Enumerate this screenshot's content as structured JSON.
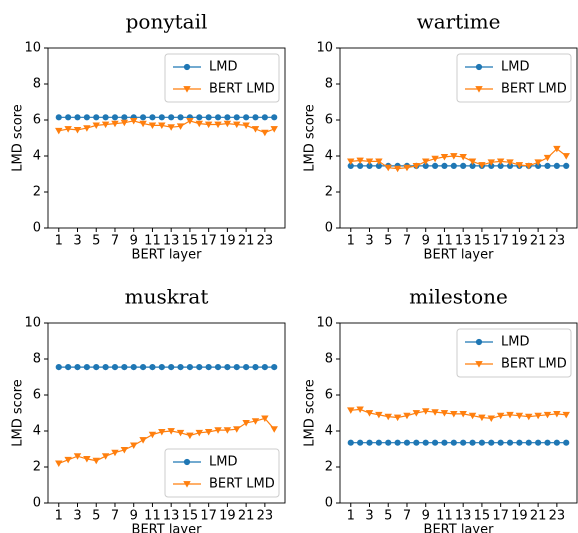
{
  "chart_data": [
    {
      "type": "line",
      "title": "ponytail",
      "xlabel": "BERT layer",
      "ylabel": "LMD score",
      "x": [
        1,
        2,
        3,
        4,
        5,
        6,
        7,
        8,
        9,
        10,
        11,
        12,
        13,
        14,
        15,
        16,
        17,
        18,
        19,
        20,
        21,
        22,
        23,
        24
      ],
      "xlim": [
        -0.15,
        25.15
      ],
      "xticks": [
        1,
        3,
        5,
        7,
        9,
        11,
        13,
        15,
        17,
        19,
        21,
        23
      ],
      "ylim": [
        0,
        10
      ],
      "yticks": [
        0,
        2,
        4,
        6,
        8,
        10
      ],
      "legend": "upper right",
      "series": [
        {
          "name": "LMD",
          "color": "#1f77b4",
          "marker": "circle",
          "values": [
            6.15,
            6.15,
            6.15,
            6.15,
            6.15,
            6.15,
            6.15,
            6.15,
            6.15,
            6.15,
            6.15,
            6.15,
            6.15,
            6.15,
            6.15,
            6.15,
            6.15,
            6.15,
            6.15,
            6.15,
            6.15,
            6.15,
            6.15,
            6.15
          ]
        },
        {
          "name": "BERT LMD",
          "color": "#ff7f0e",
          "marker": "triangle",
          "values": [
            5.4,
            5.5,
            5.45,
            5.55,
            5.7,
            5.75,
            5.8,
            5.85,
            5.95,
            5.8,
            5.7,
            5.7,
            5.6,
            5.65,
            5.95,
            5.8,
            5.75,
            5.75,
            5.8,
            5.75,
            5.7,
            5.5,
            5.3,
            5.5
          ]
        }
      ]
    },
    {
      "type": "line",
      "title": "wartime",
      "xlabel": "BERT layer",
      "ylabel": "LMD score",
      "x": [
        1,
        2,
        3,
        4,
        5,
        6,
        7,
        8,
        9,
        10,
        11,
        12,
        13,
        14,
        15,
        16,
        17,
        18,
        19,
        20,
        21,
        22,
        23,
        24
      ],
      "xlim": [
        -0.15,
        25.15
      ],
      "xticks": [
        1,
        3,
        5,
        7,
        9,
        11,
        13,
        15,
        17,
        19,
        21,
        23
      ],
      "ylim": [
        0,
        10
      ],
      "yticks": [
        0,
        2,
        4,
        6,
        8,
        10
      ],
      "legend": "upper right",
      "series": [
        {
          "name": "LMD",
          "color": "#1f77b4",
          "marker": "circle",
          "values": [
            3.45,
            3.45,
            3.45,
            3.45,
            3.45,
            3.45,
            3.45,
            3.45,
            3.45,
            3.45,
            3.45,
            3.45,
            3.45,
            3.45,
            3.45,
            3.45,
            3.45,
            3.45,
            3.45,
            3.45,
            3.45,
            3.45,
            3.45,
            3.45
          ]
        },
        {
          "name": "BERT LMD",
          "color": "#ff7f0e",
          "marker": "triangle",
          "values": [
            3.7,
            3.75,
            3.7,
            3.7,
            3.35,
            3.3,
            3.35,
            3.45,
            3.7,
            3.85,
            3.95,
            4.0,
            3.95,
            3.7,
            3.5,
            3.65,
            3.7,
            3.65,
            3.5,
            3.45,
            3.65,
            3.9,
            4.4,
            4.0
          ]
        }
      ]
    },
    {
      "type": "line",
      "title": "muskrat",
      "xlabel": "BERT layer",
      "ylabel": "LMD score",
      "x": [
        1,
        2,
        3,
        4,
        5,
        6,
        7,
        8,
        9,
        10,
        11,
        12,
        13,
        14,
        15,
        16,
        17,
        18,
        19,
        20,
        21,
        22,
        23,
        24
      ],
      "xlim": [
        -0.15,
        25.15
      ],
      "xticks": [
        1,
        3,
        5,
        7,
        9,
        11,
        13,
        15,
        17,
        19,
        21,
        23
      ],
      "ylim": [
        0,
        10
      ],
      "yticks": [
        0,
        2,
        4,
        6,
        8,
        10
      ],
      "legend": "lower right",
      "series": [
        {
          "name": "LMD",
          "color": "#1f77b4",
          "marker": "circle",
          "values": [
            7.55,
            7.55,
            7.55,
            7.55,
            7.55,
            7.55,
            7.55,
            7.55,
            7.55,
            7.55,
            7.55,
            7.55,
            7.55,
            7.55,
            7.55,
            7.55,
            7.55,
            7.55,
            7.55,
            7.55,
            7.55,
            7.55,
            7.55,
            7.55
          ]
        },
        {
          "name": "BERT LMD",
          "color": "#ff7f0e",
          "marker": "triangle",
          "values": [
            2.2,
            2.4,
            2.6,
            2.45,
            2.35,
            2.6,
            2.8,
            2.95,
            3.2,
            3.5,
            3.8,
            3.95,
            4.0,
            3.9,
            3.75,
            3.9,
            3.95,
            4.05,
            4.05,
            4.1,
            4.45,
            4.55,
            4.7,
            4.1
          ]
        }
      ]
    },
    {
      "type": "line",
      "title": "milestone",
      "xlabel": "BERT layer",
      "ylabel": "LMD score",
      "x": [
        1,
        2,
        3,
        4,
        5,
        6,
        7,
        8,
        9,
        10,
        11,
        12,
        13,
        14,
        15,
        16,
        17,
        18,
        19,
        20,
        21,
        22,
        23,
        24
      ],
      "xlim": [
        -0.15,
        25.15
      ],
      "xticks": [
        1,
        3,
        5,
        7,
        9,
        11,
        13,
        15,
        17,
        19,
        21,
        23
      ],
      "ylim": [
        0,
        10
      ],
      "yticks": [
        0,
        2,
        4,
        6,
        8,
        10
      ],
      "legend": "upper right",
      "series": [
        {
          "name": "LMD",
          "color": "#1f77b4",
          "marker": "circle",
          "values": [
            3.35,
            3.35,
            3.35,
            3.35,
            3.35,
            3.35,
            3.35,
            3.35,
            3.35,
            3.35,
            3.35,
            3.35,
            3.35,
            3.35,
            3.35,
            3.35,
            3.35,
            3.35,
            3.35,
            3.35,
            3.35,
            3.35,
            3.35,
            3.35
          ]
        },
        {
          "name": "BERT LMD",
          "color": "#ff7f0e",
          "marker": "triangle",
          "values": [
            5.15,
            5.2,
            5.0,
            4.9,
            4.8,
            4.75,
            4.85,
            5.0,
            5.1,
            5.05,
            5.0,
            4.95,
            4.95,
            4.85,
            4.75,
            4.7,
            4.85,
            4.9,
            4.85,
            4.8,
            4.85,
            4.9,
            4.95,
            4.9
          ]
        }
      ]
    }
  ]
}
